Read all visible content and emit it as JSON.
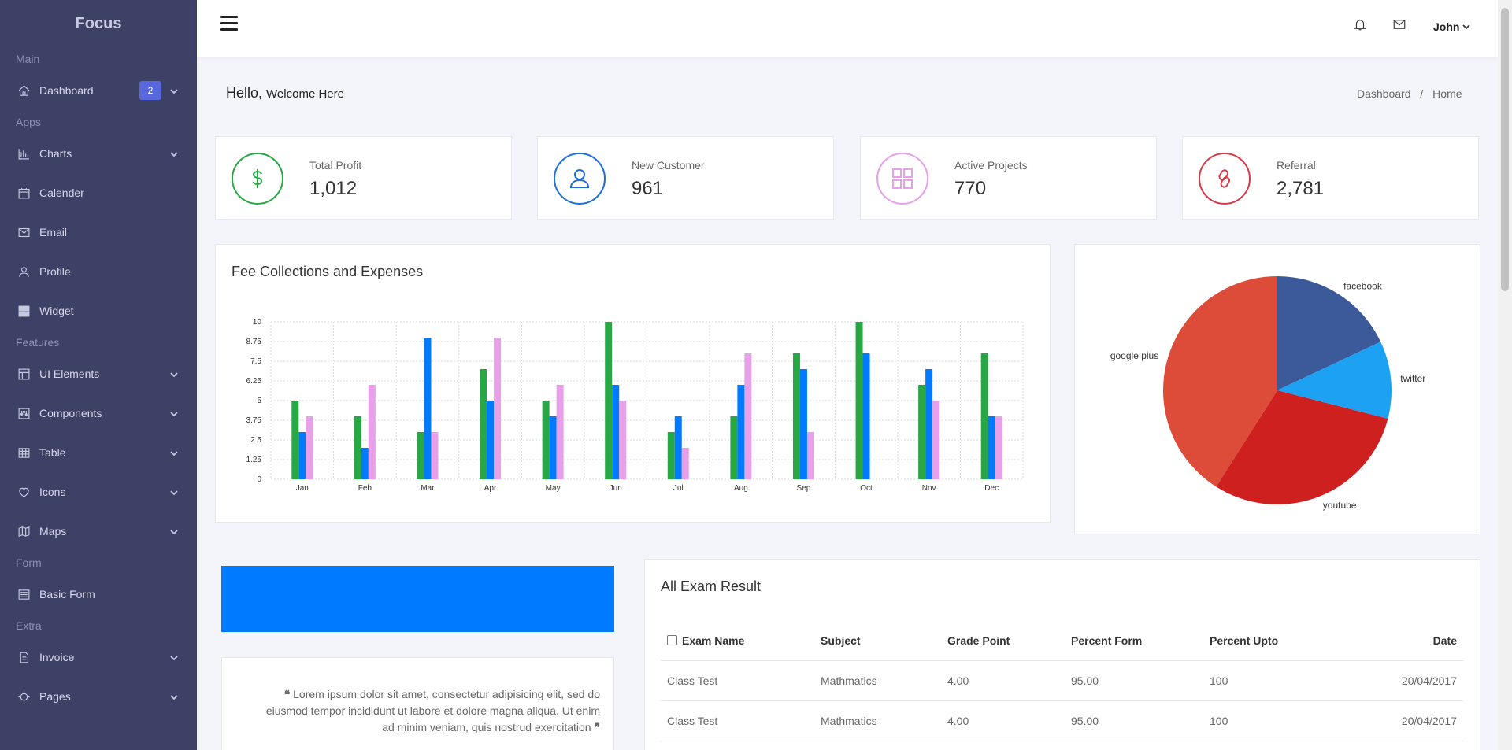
{
  "brand": "Focus",
  "sidebar": {
    "sections": [
      {
        "title": "Main",
        "items": [
          {
            "label": "Dashboard",
            "icon": "home-icon",
            "badge": "2",
            "chevron": true
          }
        ]
      },
      {
        "title": "Apps",
        "items": [
          {
            "label": "Charts",
            "icon": "bar-chart-icon",
            "chevron": true
          },
          {
            "label": "Calender",
            "icon": "calendar-icon",
            "chevron": false
          },
          {
            "label": "Email",
            "icon": "envelope-icon",
            "chevron": false
          },
          {
            "label": "Profile",
            "icon": "user-icon",
            "chevron": false
          },
          {
            "label": "Widget",
            "icon": "widget-grid-icon",
            "chevron": false
          }
        ]
      },
      {
        "title": "Features",
        "items": [
          {
            "label": "UI Elements",
            "icon": "layout-icon",
            "chevron": true
          },
          {
            "label": "Components",
            "icon": "sliders-icon",
            "chevron": true
          },
          {
            "label": "Table",
            "icon": "table-icon",
            "chevron": true
          },
          {
            "label": "Icons",
            "icon": "heart-icon",
            "chevron": true
          },
          {
            "label": "Maps",
            "icon": "map-icon",
            "chevron": true
          }
        ]
      },
      {
        "title": "Form",
        "items": [
          {
            "label": "Basic Form",
            "icon": "form-icon",
            "chevron": false
          }
        ]
      },
      {
        "title": "Extra",
        "items": [
          {
            "label": "Invoice",
            "icon": "invoice-icon",
            "chevron": true
          },
          {
            "label": "Pages",
            "icon": "target-icon",
            "chevron": true
          }
        ]
      }
    ]
  },
  "header": {
    "user": "John"
  },
  "page": {
    "hello": "Hello,",
    "welcome": "Welcome Here"
  },
  "breadcrumb": {
    "first": "Dashboard",
    "sep": "/",
    "current": "Home"
  },
  "stats": [
    {
      "label": "Total Profit",
      "value": "1,012",
      "icon": "dollar-icon",
      "color": "#28a745"
    },
    {
      "label": "New Customer",
      "value": "961",
      "icon": "customer-icon",
      "color": "#1e6fd9"
    },
    {
      "label": "Active Projects",
      "value": "770",
      "icon": "grid-icon",
      "color": "#e8a0ea"
    },
    {
      "label": "Referral",
      "value": "2,781",
      "icon": "link-icon",
      "color": "#d63a46"
    }
  ],
  "chart_data": [
    {
      "type": "bar",
      "title": "Fee Collections and Expenses",
      "categories": [
        "Jan",
        "Feb",
        "Mar",
        "Apr",
        "May",
        "Jun",
        "Jul",
        "Aug",
        "Sep",
        "Oct",
        "Nov",
        "Dec"
      ],
      "yticks": [
        "0",
        "1.25",
        "2.5",
        "3.75",
        "5",
        "6.25",
        "7.5",
        "8.75",
        "10"
      ],
      "ylim": [
        0,
        10
      ],
      "grid": true,
      "series": [
        {
          "color": "#28a745",
          "values": [
            5,
            4,
            3,
            7,
            5,
            10,
            3,
            4,
            8,
            10,
            6,
            8
          ]
        },
        {
          "color": "#007bff",
          "values": [
            3,
            2,
            9,
            5,
            4,
            6,
            4,
            6,
            7,
            8,
            7,
            4
          ]
        },
        {
          "color": "#e8a0ea",
          "values": [
            4,
            6,
            3,
            9,
            6,
            5,
            2,
            8,
            3,
            0,
            5,
            4
          ]
        }
      ]
    },
    {
      "type": "pie",
      "slices": [
        {
          "label": "facebook",
          "value": 18,
          "color": "#3c5a99"
        },
        {
          "label": "twitter",
          "value": 11,
          "color": "#1da1f2"
        },
        {
          "label": "youtube",
          "value": 30,
          "color": "#cd201f"
        },
        {
          "label": "google plus",
          "value": 41,
          "color": "#dd4b39"
        }
      ]
    }
  ],
  "quote": "Lorem ipsum dolor sit amet, consectetur adipisicing elit, sed do eiusmod tempor incididunt ut labore et dolore magna aliqua. Ut enim ad minim veniam, quis nostrud exercitation",
  "exam": {
    "title": "All Exam Result",
    "columns": [
      "Exam Name",
      "Subject",
      "Grade Point",
      "Percent Form",
      "Percent Upto",
      "Date"
    ],
    "rows": [
      [
        "Class Test",
        "Mathmatics",
        "4.00",
        "95.00",
        "100",
        "20/04/2017"
      ],
      [
        "Class Test",
        "Mathmatics",
        "4.00",
        "95.00",
        "100",
        "20/04/2017"
      ]
    ]
  }
}
